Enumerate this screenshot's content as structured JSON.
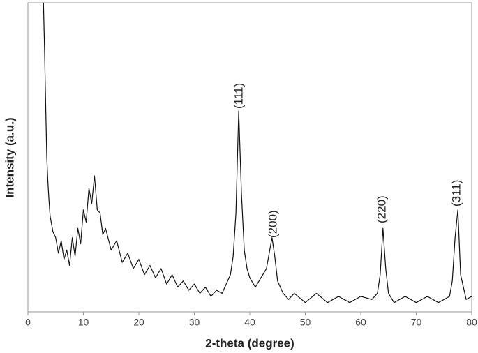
{
  "chart_data": {
    "type": "line",
    "xlabel": "2-theta (degree)",
    "ylabel": "Intensity (a.u.)",
    "x": [
      2.8,
      3.0,
      3.2,
      3.4,
      3.6,
      3.8,
      4,
      4.5,
      5,
      5.5,
      6,
      6.5,
      7,
      7.5,
      8,
      8.5,
      9,
      9.5,
      10,
      10.5,
      11,
      11.5,
      12,
      12.5,
      13,
      13.5,
      14,
      15,
      16,
      17,
      18,
      19,
      20,
      21,
      22,
      23,
      24,
      25,
      26,
      27,
      28,
      29,
      30,
      31,
      32,
      33,
      34,
      35,
      36,
      36.5,
      37,
      37.5,
      38,
      38.5,
      39,
      39.5,
      40,
      41,
      42,
      43,
      43.5,
      44,
      44.5,
      45,
      46,
      47,
      48,
      50,
      52,
      54,
      56,
      58,
      60,
      62,
      63,
      63.5,
      64,
      64.5,
      65,
      66,
      68,
      70,
      72,
      74,
      76,
      76.5,
      77,
      77.5,
      78,
      79,
      80
    ],
    "values": [
      100,
      85,
      67,
      50,
      42,
      36,
      31,
      26,
      24,
      19,
      23,
      17,
      20,
      15,
      24,
      18,
      27,
      22,
      33,
      29,
      40,
      35,
      44,
      33,
      32,
      25,
      27,
      20,
      23,
      16,
      19,
      14,
      17,
      12,
      15,
      11,
      14,
      9,
      12,
      8,
      10,
      7,
      9,
      6,
      8,
      5,
      7,
      6,
      10,
      12,
      18,
      32,
      65,
      38,
      20,
      14,
      11,
      8,
      11,
      14,
      19,
      24,
      18,
      10,
      6,
      4,
      6,
      3,
      6,
      3,
      5,
      3,
      5,
      4,
      6,
      12,
      27,
      14,
      6,
      3,
      5,
      3,
      5,
      3,
      5,
      10,
      24,
      33,
      12,
      4,
      5
    ],
    "color": "#111111",
    "xlim": [
      0,
      80
    ],
    "xticks": [
      0,
      10,
      20,
      30,
      40,
      50,
      60,
      70,
      80
    ],
    "ylim": [
      0,
      100
    ],
    "grid": false,
    "annotations": [
      "(111)",
      "(200)",
      "(220)",
      "(311)"
    ]
  }
}
